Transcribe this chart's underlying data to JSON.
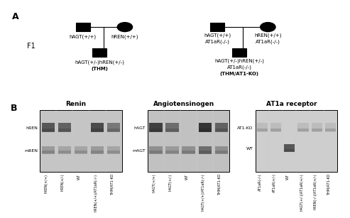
{
  "panel_a_label": "A",
  "panel_b_label": "B",
  "fig_bg": "#ffffff",
  "f1_label": "F1",
  "cross1_male_label": "hAGT(+/+)",
  "cross1_female_label": "hREN(+/+)",
  "cross1_offspring_line1": "hAGT(+/-)hREN(+/-)",
  "cross1_offspring_line2": "(THM)",
  "cross2_male_line1": "hAGT(+/+)",
  "cross2_male_line2": "AT1aR(-/-)",
  "cross2_female_line1": "hREN(+/+)",
  "cross2_female_line2": "AT1aR(-/-)",
  "cross2_offspring_line1": "hAGT(+/-)hREN(+/-)",
  "cross2_offspring_line2": "AT1aR(-/-)",
  "cross2_offspring_line3": "(THM/AT1-KO)",
  "renin_title": "Renin",
  "renin_band1_name": "hREN",
  "renin_band2_name": "mREN",
  "renin_n_lanes": 5,
  "renin_xlabels": [
    "hREN(+/+)",
    "hREN(+/-)",
    "WT",
    "hREN(+/+)/AT1aR(-/-)",
    "THM/AT1-KO"
  ],
  "agt_title": "Angiotensinogen",
  "agt_band1_name": "hAGT",
  "agt_band2_name": "mAGT",
  "agt_n_lanes": 5,
  "agt_xlabels": [
    "hAGT(+/+)",
    "hAGT(+/-)",
    "WT",
    "hAGT(+/+)/AT1aR(-/-)",
    "THM/AT1-KO"
  ],
  "at1_title": "AT1a receptor",
  "at1_band1_name": "AT1-KO",
  "at1_band2_name": "WT",
  "at1_n_lanes": 6,
  "at1_xlabels": [
    "AT1aR(-/-)",
    "AT1aR(+/-)",
    "WT",
    "hAGT(+/-)/AT1aR(+/-)",
    "hREN(-/-)/AT1aR(+/-)",
    "THM/AT1-KO"
  ],
  "renin_hREN_darkness": [
    0.75,
    0.7,
    0.05,
    0.8,
    0.6
  ],
  "renin_mREN_darkness": [
    0.45,
    0.4,
    0.4,
    0.45,
    0.4
  ],
  "agt_hAGT_darkness": [
    0.85,
    0.65,
    0.05,
    0.9,
    0.7
  ],
  "agt_mAGT_darkness": [
    0.5,
    0.45,
    0.5,
    0.65,
    0.5
  ],
  "at1_AT1KO_darkness": [
    0.3,
    0.3,
    0.05,
    0.3,
    0.3,
    0.3
  ],
  "at1_WT_darkness": [
    0.05,
    0.05,
    0.75,
    0.05,
    0.05,
    0.05
  ]
}
